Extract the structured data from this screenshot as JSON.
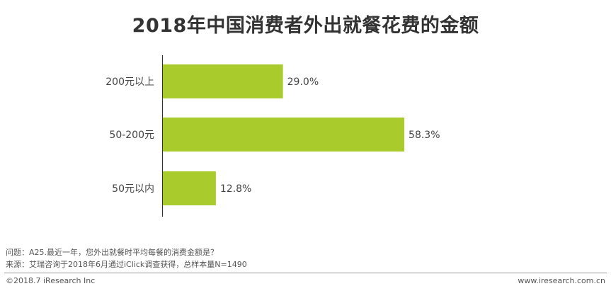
{
  "chart_data": {
    "type": "bar",
    "orientation": "horizontal",
    "title": "2018年中国消费者外出就餐花费的金额",
    "categories": [
      "200元以上",
      "50-200元",
      "50元以内"
    ],
    "values": [
      29.0,
      58.3,
      12.8
    ],
    "value_labels": [
      "29.0%",
      "58.3%",
      "12.8%"
    ],
    "unit": "%",
    "xlim": [
      0,
      100
    ],
    "grid": false,
    "legend": "none",
    "bar_color": "#a9cb2c",
    "axis_color": "#333333"
  },
  "notes": {
    "question": "问题：A25.最近一年，您外出就餐时平均每餐的消费金额是？",
    "source": "来源：艾瑞咨询于2018年6月通过iClick调查获得，总样本量N=1490"
  },
  "footer": {
    "copyright": "©2018.7 iResearch  Inc",
    "website": "www.iresearch.com.cn"
  }
}
